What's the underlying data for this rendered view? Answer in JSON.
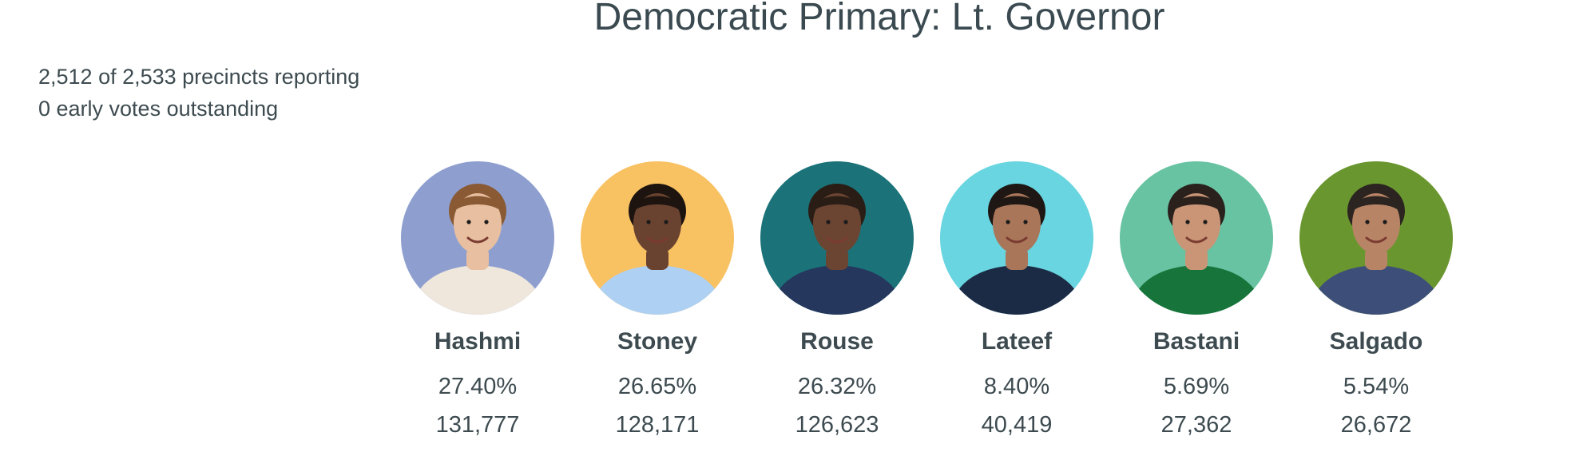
{
  "header": {
    "title": "Democratic Primary: Lt. Governor"
  },
  "reporting": {
    "precincts": "2,512 of 2,533 precincts reporting",
    "early_votes": "0 early votes outstanding"
  },
  "candidates": [
    {
      "name": "Hashmi",
      "percent": "27.40%",
      "votes": "131,777",
      "bg_color": "#8e9fcf",
      "skin": "#e8bfa0",
      "hair": "#8a5a34",
      "clothing": "#efe6dc"
    },
    {
      "name": "Stoney",
      "percent": "26.65%",
      "votes": "128,171",
      "bg_color": "#f8c162",
      "skin": "#6a4330",
      "hair": "#1d1410",
      "clothing": "#aed0f2"
    },
    {
      "name": "Rouse",
      "percent": "26.32%",
      "votes": "126,623",
      "bg_color": "#1b7379",
      "skin": "#6b4532",
      "hair": "#2a1d16",
      "clothing": "#25375d"
    },
    {
      "name": "Lateef",
      "percent": "8.40%",
      "votes": "40,419",
      "bg_color": "#68d5e0",
      "skin": "#a9765a",
      "hair": "#1e1714",
      "clothing": "#1c2b45"
    },
    {
      "name": "Bastani",
      "percent": "5.69%",
      "votes": "27,362",
      "bg_color": "#68c3a3",
      "skin": "#c99576",
      "hair": "#2a211d",
      "clothing": "#17743a"
    },
    {
      "name": "Salgado",
      "percent": "5.54%",
      "votes": "26,672",
      "bg_color": "#6a962f",
      "skin": "#b88466",
      "hair": "#2b2420",
      "clothing": "#3d4f78"
    }
  ]
}
